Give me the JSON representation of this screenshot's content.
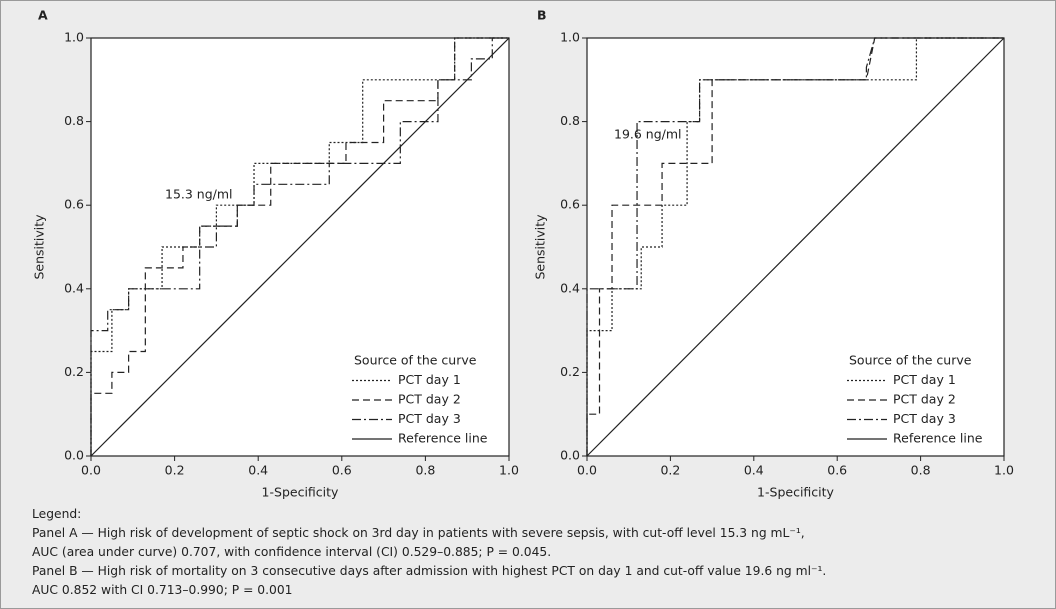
{
  "chart_data": [
    {
      "type": "line",
      "panel": "A",
      "xlabel": "1-Specificity",
      "ylabel": "Sensitivity",
      "annotation": "15.3 ng/ml",
      "legend_title": "Source of the curve",
      "legend": "lower right",
      "grid": false,
      "xlim": [
        0,
        1
      ],
      "ylim": [
        0,
        1
      ],
      "xticks": [
        {
          "value": 0,
          "label": "0.0"
        },
        0.2,
        0.4,
        0.6,
        0.8,
        {
          "value": 1,
          "label": "1.0"
        }
      ],
      "yticks": [
        {
          "value": 0,
          "label": "0.0"
        },
        0.2,
        0.4,
        0.6,
        0.8,
        {
          "value": 1,
          "label": "1.0"
        }
      ],
      "series": [
        {
          "name": "PCT day 1",
          "color": "#222222",
          "dash": "dotted",
          "x": [
            0,
            0,
            0.05,
            0.05,
            0.09,
            0.09,
            0.17,
            0.17,
            0.26,
            0.26,
            0.3,
            0.3,
            0.39,
            0.39,
            0.57,
            0.57,
            0.65,
            0.65,
            0.87,
            0.87,
            1
          ],
          "values": [
            0,
            0.25,
            0.25,
            0.35,
            0.35,
            0.4,
            0.4,
            0.5,
            0.5,
            0.55,
            0.55,
            0.6,
            0.6,
            0.7,
            0.7,
            0.75,
            0.75,
            0.9,
            0.9,
            1,
            1
          ]
        },
        {
          "name": "PCT day 2",
          "color": "#222222",
          "dash": "dashed",
          "x": [
            0,
            0,
            0.05,
            0.05,
            0.09,
            0.09,
            0.13,
            0.13,
            0.22,
            0.22,
            0.26,
            0.26,
            0.35,
            0.35,
            0.43,
            0.43,
            0.61,
            0.61,
            0.7,
            0.7,
            0.83,
            0.83,
            0.87,
            0.87,
            1
          ],
          "values": [
            0,
            0.15,
            0.15,
            0.2,
            0.2,
            0.25,
            0.25,
            0.45,
            0.45,
            0.5,
            0.5,
            0.55,
            0.55,
            0.6,
            0.6,
            0.7,
            0.7,
            0.75,
            0.75,
            0.85,
            0.85,
            0.9,
            0.9,
            1,
            1
          ]
        },
        {
          "name": "PCT day 3",
          "color": "#222222",
          "dash": "dashdot",
          "x": [
            0,
            0,
            0.04,
            0.04,
            0.09,
            0.09,
            0.26,
            0.26,
            0.3,
            0.3,
            0.35,
            0.35,
            0.39,
            0.39,
            0.57,
            0.57,
            0.74,
            0.74,
            0.83,
            0.83,
            0.91,
            0.91,
            0.96,
            0.96,
            1
          ],
          "values": [
            0,
            0.3,
            0.3,
            0.35,
            0.35,
            0.4,
            0.4,
            0.5,
            0.5,
            0.55,
            0.55,
            0.6,
            0.6,
            0.65,
            0.65,
            0.7,
            0.7,
            0.8,
            0.8,
            0.9,
            0.9,
            0.95,
            0.95,
            1,
            1
          ]
        },
        {
          "name": "Reference line",
          "color": "#222222",
          "dash": "solid",
          "x": [
            0,
            1
          ],
          "values": [
            0,
            1
          ]
        }
      ]
    },
    {
      "type": "line",
      "panel": "B",
      "xlabel": "1-Specificity",
      "ylabel": "Sensitivity",
      "annotation": "19.6 ng/ml",
      "legend_title": "Source of the curve",
      "legend": "lower right",
      "grid": false,
      "xlim": [
        0,
        1
      ],
      "ylim": [
        0,
        1
      ],
      "xticks": [
        {
          "value": 0,
          "label": "0.0"
        },
        0.2,
        0.4,
        0.6,
        0.8,
        {
          "value": 1,
          "label": "1.0"
        }
      ],
      "yticks": [
        {
          "value": 0,
          "label": "0.0"
        },
        0.2,
        0.4,
        0.6,
        0.8,
        {
          "value": 1,
          "label": "1.0"
        }
      ],
      "series": [
        {
          "name": "PCT day 1",
          "color": "#222222",
          "dash": "dotted",
          "x": [
            0,
            0,
            0.06,
            0.06,
            0.13,
            0.13,
            0.18,
            0.18,
            0.24,
            0.24,
            0.27,
            0.27,
            0.79,
            0.79,
            1
          ],
          "values": [
            0,
            0.3,
            0.3,
            0.4,
            0.4,
            0.5,
            0.5,
            0.6,
            0.6,
            0.8,
            0.8,
            0.9,
            0.9,
            1,
            1
          ]
        },
        {
          "name": "PCT day 2",
          "color": "#222222",
          "dash": "dashed",
          "x": [
            0,
            0,
            0.03,
            0.03,
            0.06,
            0.06,
            0.18,
            0.18,
            0.3,
            0.3,
            0.67,
            0.69,
            1
          ],
          "values": [
            0,
            0.1,
            0.1,
            0.4,
            0.4,
            0.6,
            0.6,
            0.7,
            0.7,
            0.9,
            0.9,
            1,
            1
          ]
        },
        {
          "name": "PCT day 3",
          "color": "#222222",
          "dash": "dashdot",
          "x": [
            0,
            0,
            0.12,
            0.12,
            0.27,
            0.27,
            0.67,
            0.67,
            0.69,
            1
          ],
          "values": [
            0,
            0.4,
            0.4,
            0.8,
            0.8,
            0.9,
            0.9,
            0.93,
            1,
            1
          ]
        },
        {
          "name": "Reference line",
          "color": "#222222",
          "dash": "solid",
          "x": [
            0,
            1
          ],
          "values": [
            0,
            1
          ]
        }
      ]
    }
  ],
  "caption": {
    "heading": "Legend:",
    "lines": [
      "Panel A — High risk of development of septic shock on 3rd day in patients with severe sepsis, with cut-off level 15.3 ng mL⁻¹,",
      "AUC (area under curve) 0.707, with confidence interval (CI) 0.529–0.885; P = 0.045.",
      "Panel B — High risk of mortality on 3 consecutive days after admission with highest PCT on day 1 and cut-off value 19.6 ng ml⁻¹.",
      "AUC 0.852 with CI 0.713–0.990; P = 0.001"
    ]
  }
}
